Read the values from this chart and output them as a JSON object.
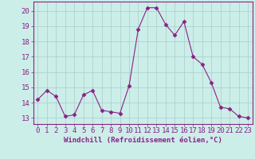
{
  "x": [
    0,
    1,
    2,
    3,
    4,
    5,
    6,
    7,
    8,
    9,
    10,
    11,
    12,
    13,
    14,
    15,
    16,
    17,
    18,
    19,
    20,
    21,
    22,
    23
  ],
  "y": [
    14.2,
    14.8,
    14.4,
    13.1,
    13.2,
    14.5,
    14.8,
    13.5,
    13.4,
    13.3,
    15.1,
    18.8,
    20.2,
    20.2,
    19.1,
    18.4,
    19.3,
    17.0,
    16.5,
    15.3,
    13.7,
    13.6,
    13.1,
    13.0
  ],
  "line_color": "#882288",
  "marker": "D",
  "marker_size": 2.5,
  "bg_color": "#cceee8",
  "grid_color": "#aacccc",
  "xlabel": "Windchill (Refroidissement éolien,°C)",
  "ylabel_ticks": [
    13,
    14,
    15,
    16,
    17,
    18,
    19,
    20
  ],
  "xlim": [
    -0.5,
    23.5
  ],
  "ylim": [
    12.6,
    20.6
  ],
  "xlabel_fontsize": 6.5,
  "tick_fontsize": 6.5,
  "axis_color": "#882288"
}
